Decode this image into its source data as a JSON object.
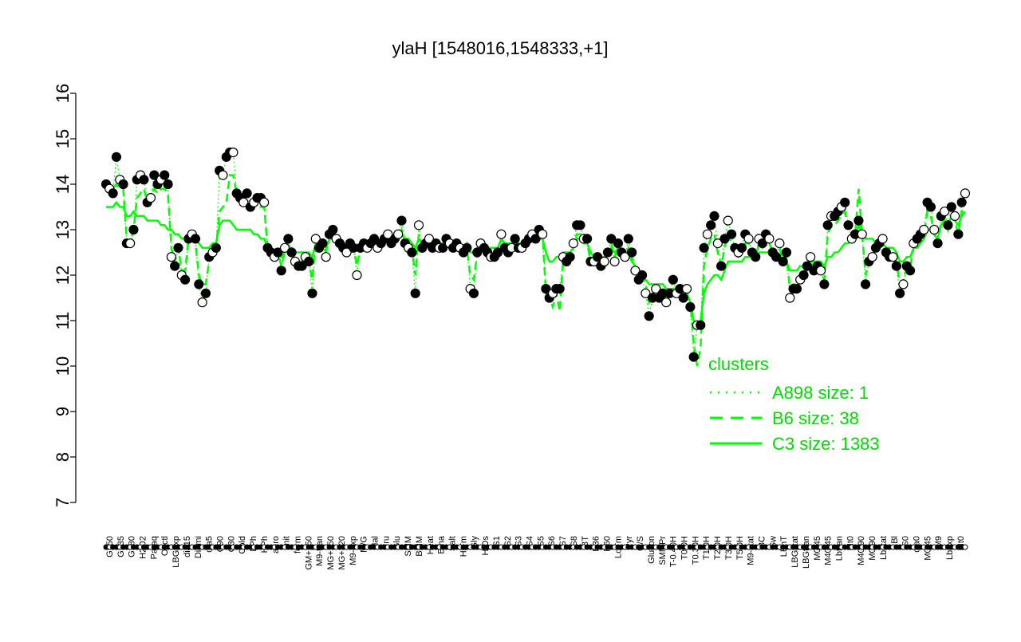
{
  "chart_data": {
    "type": "line",
    "title": "ylaH [1548016,1548333,+1]",
    "xlabel": "",
    "ylabel": "",
    "ylim": [
      7,
      16
    ],
    "yticks": [
      7,
      8,
      9,
      10,
      11,
      12,
      13,
      14,
      15,
      16
    ],
    "x_tick_labels": [
      "G150",
      "G135",
      "G180",
      "H2O2",
      "Paraq",
      "Oxctl",
      "LBGexp",
      "dia15",
      "Diami",
      "dia5",
      "C90",
      "C30",
      "Cold",
      "LPh",
      "HPh",
      "aero",
      "nit",
      "ferm",
      "GM+150",
      "M9-tran",
      "MG+150",
      "MG+120",
      "M9-exp",
      "M/G",
      "Mal",
      "Fru",
      "Glu",
      "SMM",
      "BMM",
      "Heat",
      "Etha",
      "Salt",
      "HiTm",
      "Gly",
      "HiOs",
      "S1",
      "S2",
      "S3",
      "S4",
      "S5",
      "S6",
      "S7",
      "S8",
      "BT",
      "B36",
      "B60",
      "LoTm",
      "Pyr",
      "G/S",
      "Glucon",
      "SMMPr",
      "T-0.40H",
      "T0.0H",
      "T0.30H",
      "T1.0H",
      "T2.0H",
      "T3.0H",
      "T5.0H",
      "M9-stat",
      "BC",
      "Sw",
      "LPhT",
      "LBGstat",
      "LBGtran",
      "M0t45",
      "M40t45",
      "Lbtran",
      "Mt0",
      "M40t90",
      "M0t90",
      "Lbstat",
      "Bl",
      "S0",
      "dia0",
      "M0t45",
      "M9",
      "Lbexp",
      "Mt0"
    ],
    "legend": {
      "title": "clusters",
      "placement": "right",
      "entries": [
        {
          "label": "A898 size: 1",
          "style": "dotted"
        },
        {
          "label": "B6 size: 38",
          "style": "dashed"
        },
        {
          "label": "C3 size: 1383",
          "style": "solid"
        }
      ]
    },
    "series": [
      {
        "name": "A898 size: 1",
        "style": "markers",
        "values": [
          14.0,
          13.9,
          13.8,
          14.6,
          14.1,
          14.0,
          12.7,
          12.7,
          13.0,
          14.1,
          14.2,
          14.1,
          13.6,
          13.7,
          14.2,
          14.0,
          14.1,
          14.2,
          14.0,
          12.4,
          12.2,
          12.6,
          12.0,
          11.9,
          12.8,
          12.9,
          12.8,
          11.8,
          11.4,
          11.6,
          12.4,
          12.5,
          12.6,
          14.3,
          14.2,
          14.6,
          14.7,
          14.7,
          13.8,
          13.7,
          13.6,
          13.8,
          13.5,
          13.6,
          13.7,
          13.7,
          13.6,
          12.6,
          12.5,
          12.4,
          12.5,
          12.1,
          12.6,
          12.8,
          12.5,
          12.3,
          12.2,
          12.2,
          12.4,
          12.3,
          11.6,
          12.8,
          12.6,
          12.7,
          12.4,
          12.9,
          13.0,
          12.8,
          12.7,
          12.6,
          12.5,
          12.7,
          12.6,
          12.0,
          12.6,
          12.7,
          12.6,
          12.7,
          12.8,
          12.6,
          12.7,
          12.8,
          12.9,
          12.7,
          12.8,
          12.9,
          13.2,
          12.7,
          12.6,
          12.5,
          11.6,
          13.1,
          12.6,
          12.7,
          12.8,
          12.6,
          12.7,
          12.6,
          12.6,
          12.8,
          12.7,
          12.6,
          12.7,
          12.6,
          12.5,
          12.6,
          11.7,
          11.6,
          12.5,
          12.7,
          12.6,
          12.5,
          12.4,
          12.4,
          12.5,
          12.9,
          12.6,
          12.5,
          12.6,
          12.8,
          12.6,
          12.6,
          12.7,
          12.8,
          12.9,
          12.8,
          13.0,
          12.9,
          11.7,
          11.5,
          11.6,
          11.7,
          11.7,
          12.4,
          12.3,
          12.4,
          12.7,
          13.1,
          13.1,
          12.8,
          12.8,
          12.3,
          12.3,
          12.4,
          12.2,
          12.3,
          12.5,
          12.8,
          12.3,
          12.7,
          12.5,
          12.4,
          12.8,
          12.5,
          12.1,
          11.9,
          12.0,
          11.6,
          11.1,
          11.5,
          11.7,
          11.5,
          11.6,
          11.4,
          11.6,
          11.9,
          11.6,
          11.7,
          11.5,
          11.7,
          11.3,
          10.2,
          10.9,
          10.9,
          12.6,
          12.9,
          13.1,
          13.3,
          12.7,
          12.2,
          12.8,
          13.2,
          12.9,
          12.6,
          12.5,
          12.6,
          12.9,
          12.8,
          12.5,
          12.4,
          12.8,
          12.7,
          12.9,
          12.8,
          12.5,
          12.4,
          12.7,
          12.3,
          12.5,
          11.5,
          11.7,
          11.7,
          11.9,
          12.0,
          12.2,
          12.4,
          12.1,
          12.2,
          12.1,
          11.8,
          13.1,
          13.3,
          13.3,
          13.4,
          13.5,
          13.6,
          13.1,
          12.8,
          12.9,
          13.2,
          12.9,
          11.8,
          12.3,
          12.4,
          12.6,
          12.7,
          12.8,
          12.5,
          12.4,
          12.4,
          12.2,
          11.6,
          11.8,
          12.2,
          12.1,
          12.7,
          12.8,
          12.9,
          13.0,
          13.6,
          13.5,
          13.0,
          12.7,
          13.3,
          13.4,
          13.1,
          13.5,
          13.3,
          12.9,
          13.6,
          13.8
        ]
      },
      {
        "name": "B6 size: 38",
        "style": "dashed",
        "values": [
          13.9,
          13.8,
          13.9,
          14.0,
          13.9,
          13.9,
          12.8,
          12.7,
          13.0,
          13.7,
          13.8,
          13.9,
          13.6,
          13.7,
          13.9,
          13.8,
          13.9,
          13.9,
          13.8,
          12.6,
          12.3,
          12.6,
          12.1,
          12.1,
          12.8,
          12.8,
          12.7,
          12.0,
          11.8,
          11.8,
          12.3,
          12.4,
          12.6,
          13.4,
          13.5,
          13.6,
          14.2,
          14.2,
          13.8,
          13.7,
          13.6,
          13.6,
          13.4,
          13.5,
          13.6,
          13.5,
          13.5,
          12.6,
          12.5,
          12.5,
          12.5,
          12.2,
          12.5,
          12.7,
          12.6,
          12.4,
          12.3,
          12.3,
          12.4,
          12.3,
          11.9,
          12.7,
          12.6,
          12.7,
          12.5,
          12.8,
          12.9,
          12.8,
          12.7,
          12.6,
          12.6,
          12.7,
          12.6,
          12.2,
          12.6,
          12.7,
          12.6,
          12.7,
          12.7,
          12.6,
          12.7,
          12.8,
          12.8,
          12.7,
          12.7,
          12.8,
          13.0,
          12.7,
          12.6,
          12.6,
          12.0,
          12.9,
          12.6,
          12.7,
          12.7,
          12.6,
          12.7,
          12.6,
          12.6,
          12.7,
          12.7,
          12.6,
          12.7,
          12.6,
          12.6,
          12.6,
          12.0,
          11.9,
          12.5,
          12.6,
          12.6,
          12.5,
          12.5,
          12.5,
          12.5,
          12.8,
          12.6,
          12.5,
          12.6,
          12.7,
          12.6,
          12.6,
          12.7,
          12.7,
          12.8,
          12.8,
          12.9,
          12.9,
          11.6,
          11.5,
          11.3,
          11.6,
          11.2,
          12.3,
          12.3,
          12.4,
          12.6,
          12.9,
          12.9,
          12.7,
          12.7,
          12.3,
          12.3,
          12.4,
          12.3,
          12.3,
          12.5,
          12.7,
          12.4,
          12.6,
          12.5,
          12.4,
          12.6,
          12.4,
          12.2,
          12.0,
          12.0,
          11.8,
          11.4,
          11.6,
          11.7,
          11.6,
          11.6,
          11.5,
          11.6,
          11.7,
          11.6,
          11.7,
          11.5,
          11.6,
          11.4,
          10.5,
          10.0,
          10.4,
          12.2,
          12.6,
          12.8,
          12.9,
          12.5,
          12.2,
          12.6,
          12.9,
          12.7,
          12.5,
          12.4,
          12.5,
          12.7,
          12.7,
          12.5,
          12.4,
          12.7,
          12.6,
          12.7,
          12.7,
          12.5,
          12.4,
          12.6,
          12.3,
          12.4,
          11.7,
          11.8,
          11.8,
          11.9,
          12.0,
          12.1,
          12.3,
          12.1,
          12.2,
          12.1,
          11.9,
          12.9,
          13.1,
          13.1,
          13.2,
          13.3,
          13.4,
          13.0,
          12.8,
          12.9,
          13.9,
          12.9,
          12.0,
          12.4,
          12.4,
          12.6,
          12.6,
          12.7,
          12.5,
          12.4,
          12.4,
          12.3,
          11.8,
          11.9,
          12.2,
          12.2,
          12.6,
          12.7,
          12.8,
          12.9,
          13.4,
          13.3,
          12.9,
          12.7,
          13.2,
          13.2,
          13.0,
          13.3,
          13.2,
          12.9,
          13.4,
          13.5
        ]
      },
      {
        "name": "C3 size: 1383",
        "style": "solid",
        "values": [
          13.5,
          13.5,
          13.5,
          13.6,
          13.5,
          13.5,
          13.3,
          13.3,
          13.4,
          13.3,
          13.3,
          13.3,
          13.2,
          13.2,
          13.2,
          13.2,
          13.1,
          13.1,
          13.0,
          13.0,
          12.9,
          12.9,
          12.8,
          12.8,
          12.9,
          12.9,
          12.8,
          12.7,
          12.6,
          12.6,
          12.6,
          12.7,
          12.7,
          13.1,
          13.2,
          13.2,
          13.2,
          13.1,
          13.0,
          13.0,
          13.0,
          13.0,
          13.0,
          12.9,
          12.9,
          12.8,
          12.8,
          12.6,
          12.5,
          12.5,
          12.5,
          12.4,
          12.5,
          12.6,
          12.6,
          12.5,
          12.5,
          12.5,
          12.5,
          12.5,
          12.4,
          12.7,
          12.7,
          12.7,
          12.6,
          12.8,
          12.8,
          12.8,
          12.7,
          12.7,
          12.7,
          12.7,
          12.7,
          12.6,
          12.7,
          12.7,
          12.7,
          12.7,
          12.7,
          12.7,
          12.7,
          12.8,
          12.8,
          12.8,
          12.8,
          12.8,
          12.9,
          12.8,
          12.8,
          12.7,
          12.6,
          12.8,
          12.7,
          12.7,
          12.7,
          12.7,
          12.7,
          12.7,
          12.7,
          12.7,
          12.7,
          12.7,
          12.7,
          12.7,
          12.6,
          12.7,
          12.5,
          12.5,
          12.6,
          12.7,
          12.7,
          12.6,
          12.6,
          12.6,
          12.6,
          12.8,
          12.7,
          12.7,
          12.7,
          12.7,
          12.7,
          12.7,
          12.7,
          12.7,
          12.8,
          12.8,
          12.8,
          12.8,
          12.5,
          12.3,
          12.3,
          12.4,
          12.4,
          12.5,
          12.5,
          12.5,
          12.6,
          12.8,
          12.8,
          12.7,
          12.7,
          12.5,
          12.4,
          12.4,
          12.4,
          12.4,
          12.5,
          12.6,
          12.5,
          12.6,
          12.5,
          12.4,
          12.5,
          12.3,
          12.2,
          12.1,
          12.0,
          11.9,
          11.8,
          11.8,
          11.8,
          11.8,
          11.8,
          11.7,
          11.7,
          11.7,
          11.7,
          11.7,
          11.6,
          11.6,
          11.4,
          11.0,
          10.9,
          11.0,
          11.6,
          11.8,
          11.9,
          12.0,
          12.0,
          11.9,
          12.1,
          12.3,
          12.3,
          12.3,
          12.3,
          12.3,
          12.4,
          12.4,
          12.4,
          12.4,
          12.5,
          12.5,
          12.5,
          12.5,
          12.5,
          12.4,
          12.4,
          12.3,
          12.3,
          12.1,
          12.1,
          12.1,
          12.2,
          12.2,
          12.2,
          12.3,
          12.3,
          12.3,
          12.3,
          12.2,
          12.4,
          12.4,
          12.5,
          12.5,
          12.6,
          12.7,
          12.7,
          12.8,
          12.8,
          13.1,
          12.9,
          12.8,
          12.8,
          12.8,
          12.7,
          12.7,
          12.7,
          12.6,
          12.6,
          12.6,
          12.5,
          12.3,
          12.3,
          12.4,
          12.4,
          12.6,
          12.6,
          12.7,
          12.8,
          13.0,
          13.0,
          12.9,
          12.8,
          13.1,
          13.2,
          13.1,
          13.3,
          13.2,
          13.1,
          13.3,
          13.4
        ]
      }
    ],
    "grid": false,
    "colors": {
      "lines": "#00ff00",
      "points": "#000000"
    }
  }
}
